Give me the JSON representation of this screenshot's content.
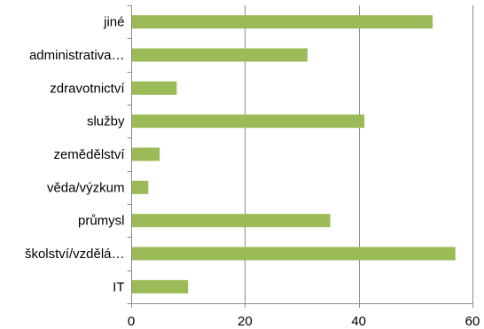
{
  "chart_data": {
    "type": "bar",
    "orientation": "horizontal",
    "title": "",
    "xlabel": "",
    "ylabel": "",
    "categories": [
      "jiné",
      "administrativa…",
      "zdravotnictví",
      "služby",
      "zemědělství",
      "věda/výzkum",
      "průmysl",
      "školství/vzdělá…",
      "IT"
    ],
    "values": [
      53,
      31,
      8,
      41,
      5,
      3,
      35,
      57,
      10
    ],
    "xlim": [
      0,
      60
    ],
    "ticks": [
      0,
      20,
      40,
      60
    ],
    "tick_labels": [
      "0",
      "20",
      "40",
      "60"
    ],
    "grid": "vertical",
    "legend": "none",
    "bar_color": "#9bbb59"
  }
}
